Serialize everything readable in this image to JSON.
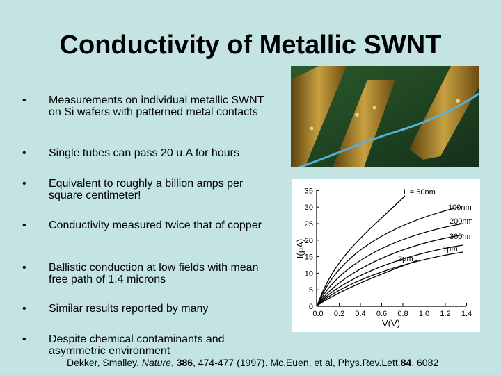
{
  "title": "Conductivity of Metallic SWNT",
  "bullets": [
    "Measurements on individual metallic SWNT on Si wafers with patterned metal contacts",
    "Single tubes can pass 20 u.A for hours",
    "Equivalent to roughly a billion amps per square centimeter!",
    "Conductivity measured twice that of copper",
    "Ballistic conduction at low fields with mean free path of 1.4 microns",
    "Similar results reported by many",
    "Despite chemical contaminants and asymmetric environment"
  ],
  "figure": {
    "y_label": "I(μA)",
    "x_label": "V(V)",
    "ytick_labels": [
      "0",
      "5",
      "10",
      "15",
      "20",
      "25",
      "30",
      "35"
    ],
    "xtick_labels": [
      "0.0",
      "0.2",
      "0.4",
      "0.6",
      "0.8",
      "1.0",
      "1.2",
      "1.4"
    ],
    "curve_labels": [
      "L = 50nm",
      "100nm",
      "200nm",
      "300nm",
      "1μm",
      "2μm"
    ]
  },
  "citation": [
    "Dekker, Smalley, ",
    "Nature",
    ", ",
    "386",
    ", 474-477 (1997).  Mc.Euen, et al, Phys.Rev.Lett.",
    "84",
    ", 6082"
  ]
}
